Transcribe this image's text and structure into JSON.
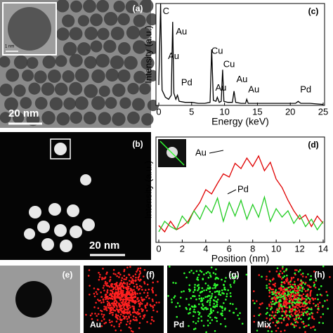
{
  "panels": {
    "a": {
      "label": "(a)",
      "scale_bar": "20 nm",
      "inset_scale": "1 nm"
    },
    "b": {
      "label": "(b)",
      "scale_bar": "20 nm"
    },
    "e": {
      "label": "(e)"
    },
    "f": {
      "label": "(f)",
      "element": "Au"
    },
    "g": {
      "label": "(g)",
      "element": "Pd"
    },
    "h": {
      "label": "(h)",
      "element": "Mix"
    }
  },
  "chart_data": [
    {
      "type": "line",
      "panel_label": "(c)",
      "x_label": "Energy (keV)",
      "y_label": "Intensity (a.u.)",
      "xlim": [
        0,
        25
      ],
      "ylim": [
        0,
        100
      ],
      "xticks": [
        0,
        5,
        10,
        15,
        20,
        25
      ],
      "series": [
        {
          "color": "#000000",
          "x": [
            0,
            0.28,
            0.5,
            1,
            1.5,
            1.9,
            2.12,
            2.3,
            2.6,
            2.84,
            3.1,
            4,
            5,
            6,
            7,
            7.8,
            8.04,
            8.3,
            8.7,
            8.9,
            9.2,
            9.5,
            9.71,
            9.9,
            10.5,
            11.2,
            11.44,
            11.7,
            12.5,
            13.2,
            13.38,
            13.6,
            15,
            17,
            19,
            20.8,
            21.2,
            21.6,
            23,
            25
          ],
          "values": [
            20,
            100,
            15,
            8,
            6,
            10,
            82,
            12,
            6,
            10,
            4,
            3,
            3,
            2,
            2,
            3,
            55,
            5,
            4,
            8,
            3,
            4,
            35,
            4,
            3,
            3,
            14,
            3,
            2,
            2,
            6,
            2,
            2,
            2,
            2,
            2,
            4,
            2,
            2,
            1
          ]
        }
      ],
      "annotations": [
        {
          "text": "C",
          "x": 0.6,
          "y": 92
        },
        {
          "text": "Au",
          "x": 2.6,
          "y": 72
        },
        {
          "text": "Au",
          "x": 1.4,
          "y": 48
        },
        {
          "text": "Pd",
          "x": 3.4,
          "y": 22
        },
        {
          "text": "Cu",
          "x": 8.0,
          "y": 53
        },
        {
          "text": "Cu",
          "x": 9.8,
          "y": 40
        },
        {
          "text": "Au",
          "x": 11.8,
          "y": 25
        },
        {
          "text": "Au",
          "x": 8.6,
          "y": 17
        },
        {
          "text": "Au",
          "x": 13.6,
          "y": 15
        },
        {
          "text": "Pd",
          "x": 21.5,
          "y": 15
        }
      ]
    },
    {
      "type": "line",
      "panel_label": "(d)",
      "x_label": "Position (nm)",
      "y_label": "Intensity (a.u.)",
      "xlim": [
        0,
        14
      ],
      "ylim": [
        0,
        10
      ],
      "xticks": [
        0,
        2,
        4,
        6,
        8,
        10,
        12,
        14
      ],
      "series": [
        {
          "name": "Au",
          "color": "#e00000",
          "x": [
            0,
            0.5,
            1,
            1.5,
            2,
            2.5,
            3,
            3.5,
            4,
            4.5,
            5,
            5.5,
            6,
            6.5,
            7,
            7.5,
            8,
            8.5,
            9,
            9.5,
            10,
            10.5,
            11,
            11.5,
            12,
            12.5,
            13,
            13.5,
            14
          ],
          "values": [
            1.6,
            1.0,
            2.0,
            1.2,
            1.5,
            2.0,
            3.0,
            3.8,
            5.0,
            4.6,
            5.6,
            6.5,
            6.2,
            7.5,
            7.0,
            8.0,
            7.2,
            8.2,
            6.8,
            7.6,
            6.0,
            5.2,
            4.0,
            3.0,
            2.2,
            2.6,
            1.5,
            2.5,
            1.8
          ]
        },
        {
          "name": "Pd",
          "color": "#22cc22",
          "x": [
            0,
            0.5,
            1,
            1.5,
            2,
            2.5,
            3,
            3.5,
            4,
            4.5,
            5,
            5.5,
            6,
            6.5,
            7,
            7.5,
            8,
            8.5,
            9,
            9.5,
            10,
            10.5,
            11,
            11.5,
            12,
            12.5,
            13,
            13.5,
            14
          ],
          "values": [
            1.0,
            2.0,
            1.5,
            1.2,
            2.5,
            1.8,
            3.0,
            2.2,
            3.5,
            2.8,
            4.2,
            2.0,
            3.8,
            2.5,
            4.0,
            2.2,
            3.6,
            2.4,
            4.3,
            2.0,
            3.2,
            2.4,
            3.0,
            1.8,
            2.6,
            1.5,
            2.2,
            1.2,
            2.0
          ]
        }
      ]
    }
  ]
}
